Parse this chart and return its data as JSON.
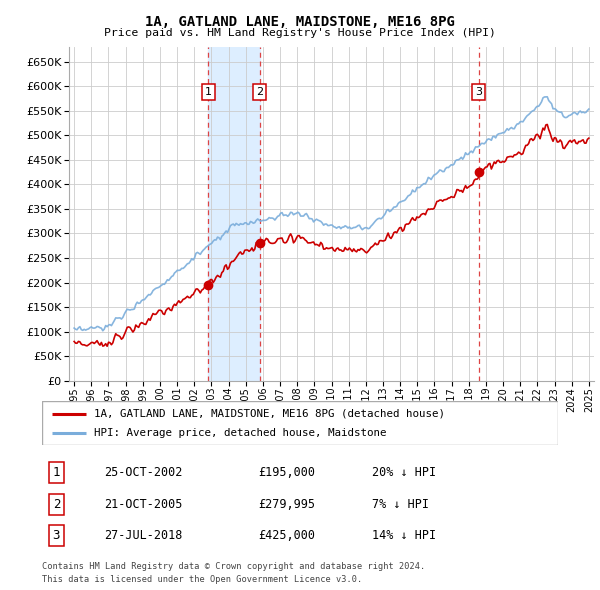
{
  "title": "1A, GATLAND LANE, MAIDSTONE, ME16 8PG",
  "subtitle": "Price paid vs. HM Land Registry's House Price Index (HPI)",
  "hpi_label": "HPI: Average price, detached house, Maidstone",
  "property_label": "1A, GATLAND LANE, MAIDSTONE, ME16 8PG (detached house)",
  "footer1": "Contains HM Land Registry data © Crown copyright and database right 2024.",
  "footer2": "This data is licensed under the Open Government Licence v3.0.",
  "sales": [
    {
      "num": 1,
      "date": "25-OCT-2002",
      "price": 195000,
      "pct": "20%",
      "x_year": 2002.81
    },
    {
      "num": 2,
      "date": "21-OCT-2005",
      "price": 279995,
      "pct": "7%",
      "x_year": 2005.81
    },
    {
      "num": 3,
      "date": "27-JUL-2018",
      "price": 425000,
      "pct": "14%",
      "x_year": 2018.57
    }
  ],
  "ylim": [
    0,
    680000
  ],
  "yticks": [
    0,
    50000,
    100000,
    150000,
    200000,
    250000,
    300000,
    350000,
    400000,
    450000,
    500000,
    550000,
    600000,
    650000
  ],
  "xlim_start": 1994.7,
  "xlim_end": 2025.3,
  "hpi_color": "#7aaddb",
  "property_color": "#cc0000",
  "grid_color": "#cccccc",
  "background_color": "#ffffff",
  "shaded_color": "#ddeeff"
}
